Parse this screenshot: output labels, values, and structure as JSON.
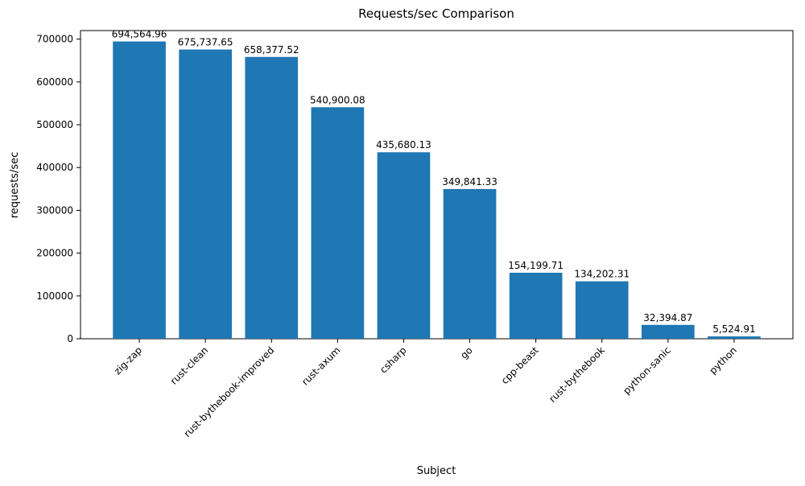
{
  "chart_data": {
    "type": "bar",
    "title": "Requests/sec Comparison",
    "xlabel": "Subject",
    "ylabel": "requests/sec",
    "categories": [
      "zig-zap",
      "rust-clean",
      "rust-bythebook-improved",
      "rust-axum",
      "csharp",
      "go",
      "cpp-beast",
      "rust-bythebook",
      "python-sanic",
      "python"
    ],
    "values": [
      694564.96,
      675737.65,
      658377.52,
      540900.08,
      435680.13,
      349841.33,
      154199.71,
      134202.31,
      32394.87,
      5524.91
    ],
    "value_labels": [
      "694,564.96",
      "675,737.65",
      "658,377.52",
      "540,900.08",
      "435,680.13",
      "349,841.33",
      "154,199.71",
      "134,202.31",
      "32,394.87",
      "5,524.91"
    ],
    "bar_color": "#1f77b4",
    "axis_color": "#000000",
    "ylim": [
      0,
      720000
    ],
    "yticks": [
      0,
      100000,
      200000,
      300000,
      400000,
      500000,
      600000,
      700000
    ],
    "grid": false,
    "legend_position": "none"
  }
}
